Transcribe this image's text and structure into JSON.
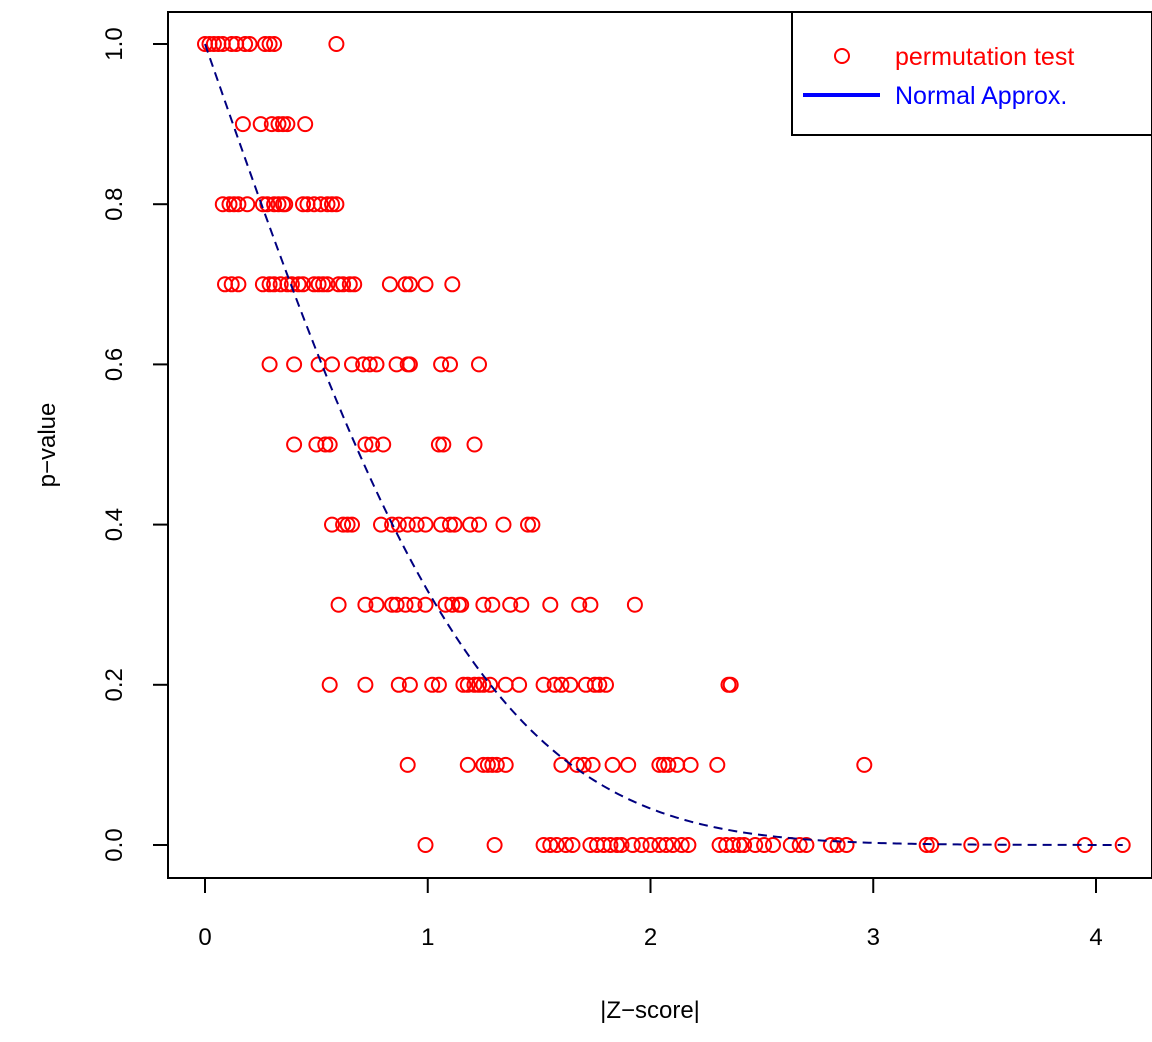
{
  "chart_data": {
    "type": "scatter",
    "xlabel": "|Z−score|",
    "ylabel": "p−value",
    "xlim": [
      -0.15,
      4.2
    ],
    "ylim": [
      -0.04,
      1.04
    ],
    "x_ticks": [
      0,
      1,
      2,
      3,
      4
    ],
    "x_tick_labels": [
      "0",
      "1",
      "2",
      "3",
      "4"
    ],
    "y_ticks": [
      0.0,
      0.2,
      0.4,
      0.6,
      0.8,
      1.0
    ],
    "y_tick_labels": [
      "0.0",
      "0.2",
      "0.4",
      "0.6",
      "0.8",
      "1.0"
    ],
    "grid": false,
    "legend_position": "top-right",
    "colors": {
      "points": "#ff0000",
      "curve": "#000080",
      "legend_line": "#0000ff",
      "axis": "#000000"
    },
    "series": [
      {
        "name": "permutation test",
        "kind": "points",
        "groups": [
          {
            "p": 1.0,
            "z": [
              0.0,
              0.02,
              0.04,
              0.06,
              0.08,
              0.12,
              0.14,
              0.18,
              0.2,
              0.27,
              0.29,
              0.31,
              0.59
            ]
          },
          {
            "p": 0.9,
            "z": [
              0.17,
              0.25,
              0.3,
              0.33,
              0.35,
              0.37,
              0.45
            ]
          },
          {
            "p": 0.8,
            "z": [
              0.08,
              0.11,
              0.13,
              0.15,
              0.19,
              0.26,
              0.28,
              0.31,
              0.33,
              0.35,
              0.36,
              0.44,
              0.46,
              0.49,
              0.52,
              0.55,
              0.57,
              0.59
            ]
          },
          {
            "p": 0.7,
            "z": [
              0.09,
              0.12,
              0.15,
              0.26,
              0.29,
              0.31,
              0.34,
              0.37,
              0.39,
              0.42,
              0.44,
              0.49,
              0.51,
              0.53,
              0.55,
              0.6,
              0.62,
              0.65,
              0.67,
              0.83,
              0.9,
              0.92,
              0.99,
              1.11
            ]
          },
          {
            "p": 0.6,
            "z": [
              0.29,
              0.4,
              0.51,
              0.57,
              0.66,
              0.71,
              0.74,
              0.77,
              0.86,
              0.91,
              0.92,
              1.06,
              1.1,
              1.23
            ]
          },
          {
            "p": 0.5,
            "z": [
              0.4,
              0.5,
              0.54,
              0.56,
              0.72,
              0.75,
              0.8,
              1.05,
              1.07,
              1.21
            ]
          },
          {
            "p": 0.4,
            "z": [
              0.57,
              0.62,
              0.64,
              0.66,
              0.79,
              0.84,
              0.87,
              0.91,
              0.95,
              0.99,
              1.06,
              1.1,
              1.12,
              1.19,
              1.23,
              1.34,
              1.45,
              1.47
            ]
          },
          {
            "p": 0.3,
            "z": [
              0.6,
              0.72,
              0.77,
              0.84,
              0.86,
              0.9,
              0.94,
              0.99,
              1.08,
              1.11,
              1.14,
              1.15,
              1.25,
              1.29,
              1.37,
              1.42,
              1.55,
              1.68,
              1.73,
              1.93
            ]
          },
          {
            "p": 0.2,
            "z": [
              0.56,
              0.72,
              0.87,
              0.92,
              1.02,
              1.05,
              1.16,
              1.18,
              1.21,
              1.23,
              1.25,
              1.28,
              1.35,
              1.41,
              1.52,
              1.57,
              1.6,
              1.64,
              1.71,
              1.75,
              1.77,
              1.8,
              2.35,
              2.36
            ]
          },
          {
            "p": 0.1,
            "z": [
              0.91,
              1.18,
              1.25,
              1.27,
              1.29,
              1.31,
              1.35,
              1.6,
              1.67,
              1.7,
              1.74,
              1.83,
              1.9,
              2.04,
              2.06,
              2.08,
              2.12,
              2.18,
              2.3,
              2.96
            ]
          },
          {
            "p": 0.0,
            "z": [
              0.99,
              1.3,
              1.52,
              1.55,
              1.58,
              1.62,
              1.65,
              1.73,
              1.76,
              1.79,
              1.82,
              1.85,
              1.87,
              1.92,
              1.96,
              2.0,
              2.04,
              2.07,
              2.1,
              2.14,
              2.17,
              2.31,
              2.34,
              2.37,
              2.4,
              2.42,
              2.47,
              2.51,
              2.55,
              2.63,
              2.67,
              2.7,
              2.81,
              2.84,
              2.88,
              3.24,
              3.26,
              3.44,
              3.58,
              3.95,
              4.12
            ]
          }
        ]
      },
      {
        "name": "Normal Approx.",
        "kind": "line",
        "formula": "p = 2 * (1 - Phi(|z|))",
        "x_range": [
          0,
          4.12
        ]
      }
    ],
    "legend": [
      {
        "label": "permutation test",
        "text_color": "#ff0000"
      },
      {
        "label": "Normal Approx.",
        "text_color": "#0000ff"
      }
    ]
  }
}
